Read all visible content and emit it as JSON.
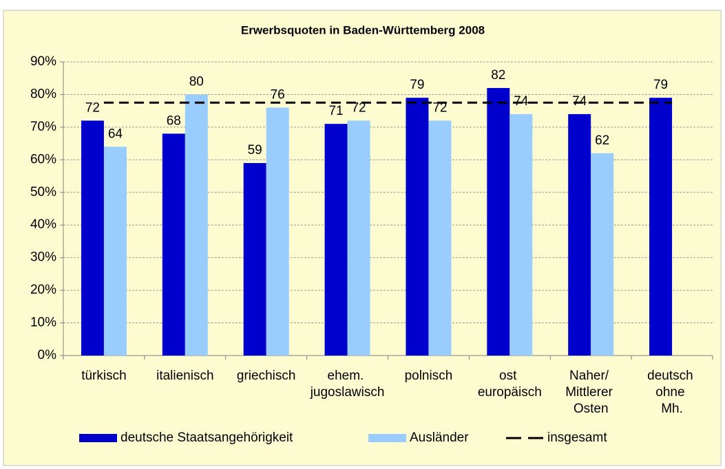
{
  "chart_data": {
    "type": "bar",
    "title": "Erwerbsquoten in Baden-Württemberg 2008",
    "categories": [
      "türkisch",
      "italienisch",
      "griechisch",
      "ehem. jugoslawisch",
      "polnisch",
      "ost europäisch",
      "Naher/ Mittlerer Osten",
      "deutsch ohne Mh."
    ],
    "series": [
      {
        "name": "deutsche Staatsangehörigkeit",
        "color": "#0000cc",
        "values": [
          72,
          68,
          59,
          71,
          79,
          82,
          74,
          79
        ]
      },
      {
        "name": "Ausländer",
        "color": "#99ccff",
        "values": [
          64,
          80,
          76,
          72,
          72,
          74,
          62,
          null
        ]
      },
      {
        "name": "insgesamt",
        "type": "line",
        "color": "#000000",
        "values": [
          77.5,
          77.5,
          77.5,
          77.5,
          77.5,
          77.5,
          77.5,
          77.5
        ]
      }
    ],
    "ylim": [
      0,
      90
    ],
    "yticks": [
      {
        "value": 0,
        "label": "0%"
      },
      {
        "value": 10,
        "label": "10%"
      },
      {
        "value": 20,
        "label": "20%"
      },
      {
        "value": 30,
        "label": "30%"
      },
      {
        "value": 40,
        "label": "40%"
      },
      {
        "value": 50,
        "label": "50%"
      },
      {
        "value": 60,
        "label": "60%"
      },
      {
        "value": 70,
        "label": "70%"
      },
      {
        "value": 80,
        "label": "80%"
      },
      {
        "value": 90,
        "label": "90%"
      }
    ],
    "grid": true,
    "legend": "bottom"
  }
}
